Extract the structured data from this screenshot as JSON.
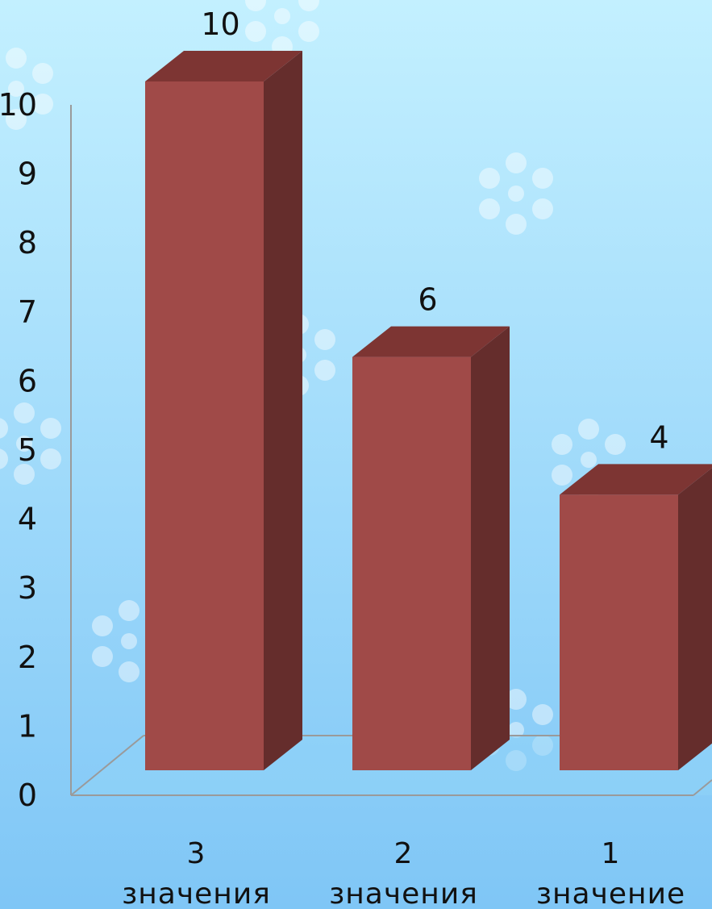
{
  "chart_data": {
    "type": "bar",
    "style": "3d-column",
    "categories": [
      "3 значения",
      "2 значения",
      "1 значение"
    ],
    "category_lines": [
      [
        "3",
        "значения"
      ],
      [
        "2",
        "значения"
      ],
      [
        "1",
        "значение"
      ]
    ],
    "values": [
      10,
      6,
      4
    ],
    "data_labels": [
      "10",
      "6",
      "4"
    ],
    "ylim": [
      0,
      10
    ],
    "yticks": [
      "0",
      "1",
      "2",
      "3",
      "4",
      "5",
      "6",
      "7",
      "8",
      "9",
      "10"
    ],
    "title": "",
    "xlabel": "",
    "ylabel": "",
    "legend": "none",
    "grid": false
  },
  "colors": {
    "bar_front": "#a04a48",
    "bar_top": "#7d3533",
    "bar_side": "#652d2c",
    "background_top": "#c3f0ff",
    "background_bottom": "#7fc6f6",
    "axis": "#9a9a9a"
  },
  "icons": [
    "snowflake-icon"
  ]
}
